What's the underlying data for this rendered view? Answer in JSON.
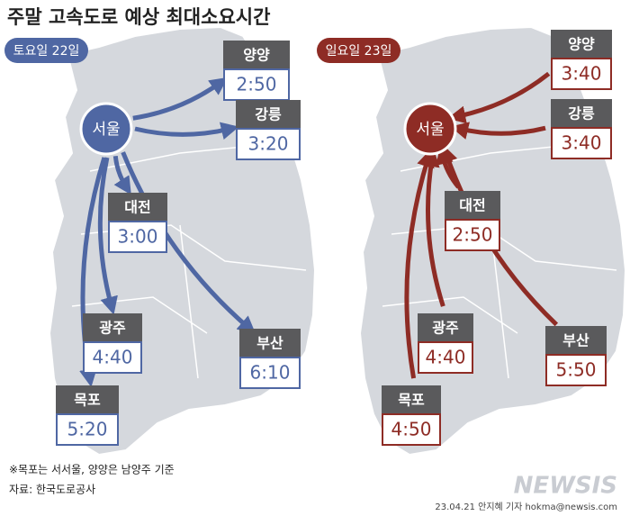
{
  "header": {
    "title": "주말 고속도로 예상 최대소요시간"
  },
  "panels": [
    {
      "label": "토요일 22일",
      "hub": "서울",
      "routes": [
        {
          "city": "양양",
          "time": "2:50"
        },
        {
          "city": "강릉",
          "time": "3:20"
        },
        {
          "city": "대전",
          "time": "3:00"
        },
        {
          "city": "광주",
          "time": "4:40"
        },
        {
          "city": "부산",
          "time": "6:10"
        },
        {
          "city": "목포",
          "time": "5:20"
        }
      ]
    },
    {
      "label": "일요일 23일",
      "hub": "서울",
      "routes": [
        {
          "city": "양양",
          "time": "3:40"
        },
        {
          "city": "강릉",
          "time": "3:40"
        },
        {
          "city": "대전",
          "time": "2:50"
        },
        {
          "city": "광주",
          "time": "4:40"
        },
        {
          "city": "부산",
          "time": "5:50"
        },
        {
          "city": "목포",
          "time": "4:50"
        }
      ]
    }
  ],
  "footer": {
    "notes": [
      "※목포는 서서울, 양양은 남양주 기준",
      "자료: 한국도로공사"
    ],
    "credit": "23.04.21 안지혜 기자 hokma@newsis.com",
    "logo": "NEWSIS"
  }
}
